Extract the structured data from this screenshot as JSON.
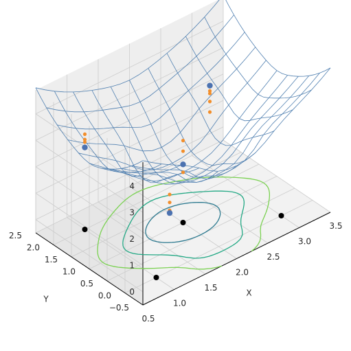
{
  "chart_data": {
    "type": "surface3d",
    "title": "",
    "xlabel": "X",
    "ylabel": "Y",
    "zlabel": "",
    "xlim": [
      0.5,
      3.5
    ],
    "ylim": [
      -0.5,
      2.5
    ],
    "zlim": [
      -0.5,
      4.9
    ],
    "x_ticks": [
      "0.5",
      "1.0",
      "1.5",
      "2.0",
      "2.5",
      "3.0",
      "3.5"
    ],
    "y_ticks": [
      "−0.5",
      "0.0",
      "0.5",
      "1.0",
      "1.5",
      "2.0",
      "2.5"
    ],
    "z_ticks": [
      "0",
      "1",
      "2",
      "3",
      "4"
    ],
    "grid": true,
    "surface": {
      "x_range": [
        0.5,
        3.5
      ],
      "y_range": [
        -0.5,
        2.5
      ],
      "steps": 10,
      "color": "#4f7fb0"
    },
    "anchor_points": [
      {
        "x": 1.0,
        "y": 0.0,
        "z": 2.6
      },
      {
        "x": 2.0,
        "y": 1.0,
        "z": 1.7
      },
      {
        "x": 3.0,
        "y": 2.0,
        "z": 2.6
      },
      {
        "x": 1.0,
        "y": 2.0,
        "z": 2.6
      },
      {
        "x": 3.0,
        "y": 0.0,
        "z": 2.6
      },
      {
        "x": 2.0,
        "y": 0.0,
        "z": 1.9
      }
    ],
    "surface_points": [
      {
        "x": 1.0,
        "y": 2.0,
        "z": 2.6
      },
      {
        "x": 2.0,
        "y": 1.0,
        "z": 1.7
      },
      {
        "x": 3.0,
        "y": 2.0,
        "z": 2.6
      },
      {
        "x": 1.5,
        "y": 0.5,
        "z": 0.9
      }
    ],
    "floor_points": [
      {
        "x": 1.0,
        "y": 2.0
      },
      {
        "x": 2.0,
        "y": 1.0
      },
      {
        "x": 3.0,
        "y": 0.0
      },
      {
        "x": 1.0,
        "y": 0.0
      }
    ],
    "vertical_samples": [
      {
        "x": 1.0,
        "y": 2.0,
        "z": [
          3.1,
          2.9,
          2.8
        ]
      },
      {
        "x": 2.0,
        "y": 1.0,
        "z": [
          2.6,
          2.2,
          1.7,
          1.4
        ]
      },
      {
        "x": 3.0,
        "y": 2.0,
        "z": [
          2.4,
          2.3,
          2.0,
          1.6
        ]
      },
      {
        "x": 1.5,
        "y": 0.5,
        "z": [
          1.6,
          1.3,
          1.0
        ]
      }
    ],
    "colors": {
      "surface": "#4f7fb0",
      "samples": "#f28e2b",
      "points": "#4c72b0",
      "floor_points": "#000000",
      "pane": "#eeeeee",
      "pane_side": "#e6e6e6",
      "pane_floor": "#f2f2f2",
      "grid": "#cccccc"
    },
    "contour_colormap": [
      "#3e3d8c",
      "#2a788e",
      "#22a884",
      "#7ad151"
    ]
  }
}
